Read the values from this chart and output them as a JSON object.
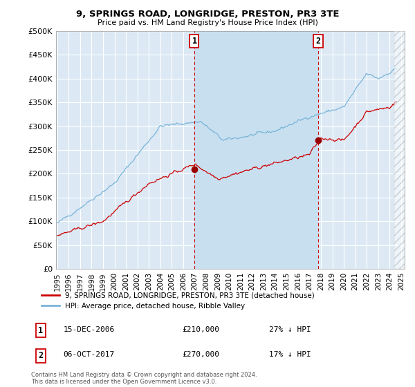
{
  "title": "9, SPRINGS ROAD, LONGRIDGE, PRESTON, PR3 3TE",
  "subtitle": "Price paid vs. HM Land Registry's House Price Index (HPI)",
  "background_color": "#ffffff",
  "plot_bg_color": "#dce9f5",
  "highlight_bg_color": "#c8dff0",
  "grid_color": "#ffffff",
  "hpi_color": "#7ab4d8",
  "price_color": "#cc0000",
  "marker_color": "#990000",
  "ylim": [
    0,
    500000
  ],
  "yticks": [
    0,
    50000,
    100000,
    150000,
    200000,
    250000,
    300000,
    350000,
    400000,
    450000,
    500000
  ],
  "ytick_labels": [
    "£0",
    "£50K",
    "£100K",
    "£150K",
    "£200K",
    "£250K",
    "£300K",
    "£350K",
    "£400K",
    "£450K",
    "£500K"
  ],
  "xlim_start": 1994.9,
  "xlim_end": 2025.3,
  "xtick_years": [
    1995,
    1996,
    1997,
    1998,
    1999,
    2000,
    2001,
    2002,
    2003,
    2004,
    2005,
    2006,
    2007,
    2008,
    2009,
    2010,
    2011,
    2012,
    2013,
    2014,
    2015,
    2016,
    2017,
    2018,
    2019,
    2020,
    2021,
    2022,
    2023,
    2024,
    2025
  ],
  "sale1_x": 2006.96,
  "sale1_y": 210000,
  "sale2_x": 2017.76,
  "sale2_y": 270000,
  "legend1": "9, SPRINGS ROAD, LONGRIDGE, PRESTON, PR3 3TE (detached house)",
  "legend2": "HPI: Average price, detached house, Ribble Valley",
  "ann1_date": "15-DEC-2006",
  "ann1_price": "£210,000",
  "ann1_hpi": "27% ↓ HPI",
  "ann2_date": "06-OCT-2017",
  "ann2_price": "£270,000",
  "ann2_hpi": "17% ↓ HPI",
  "footer": "Contains HM Land Registry data © Crown copyright and database right 2024.\nThis data is licensed under the Open Government Licence v3.0.",
  "hatch_start_x": 2024.4
}
